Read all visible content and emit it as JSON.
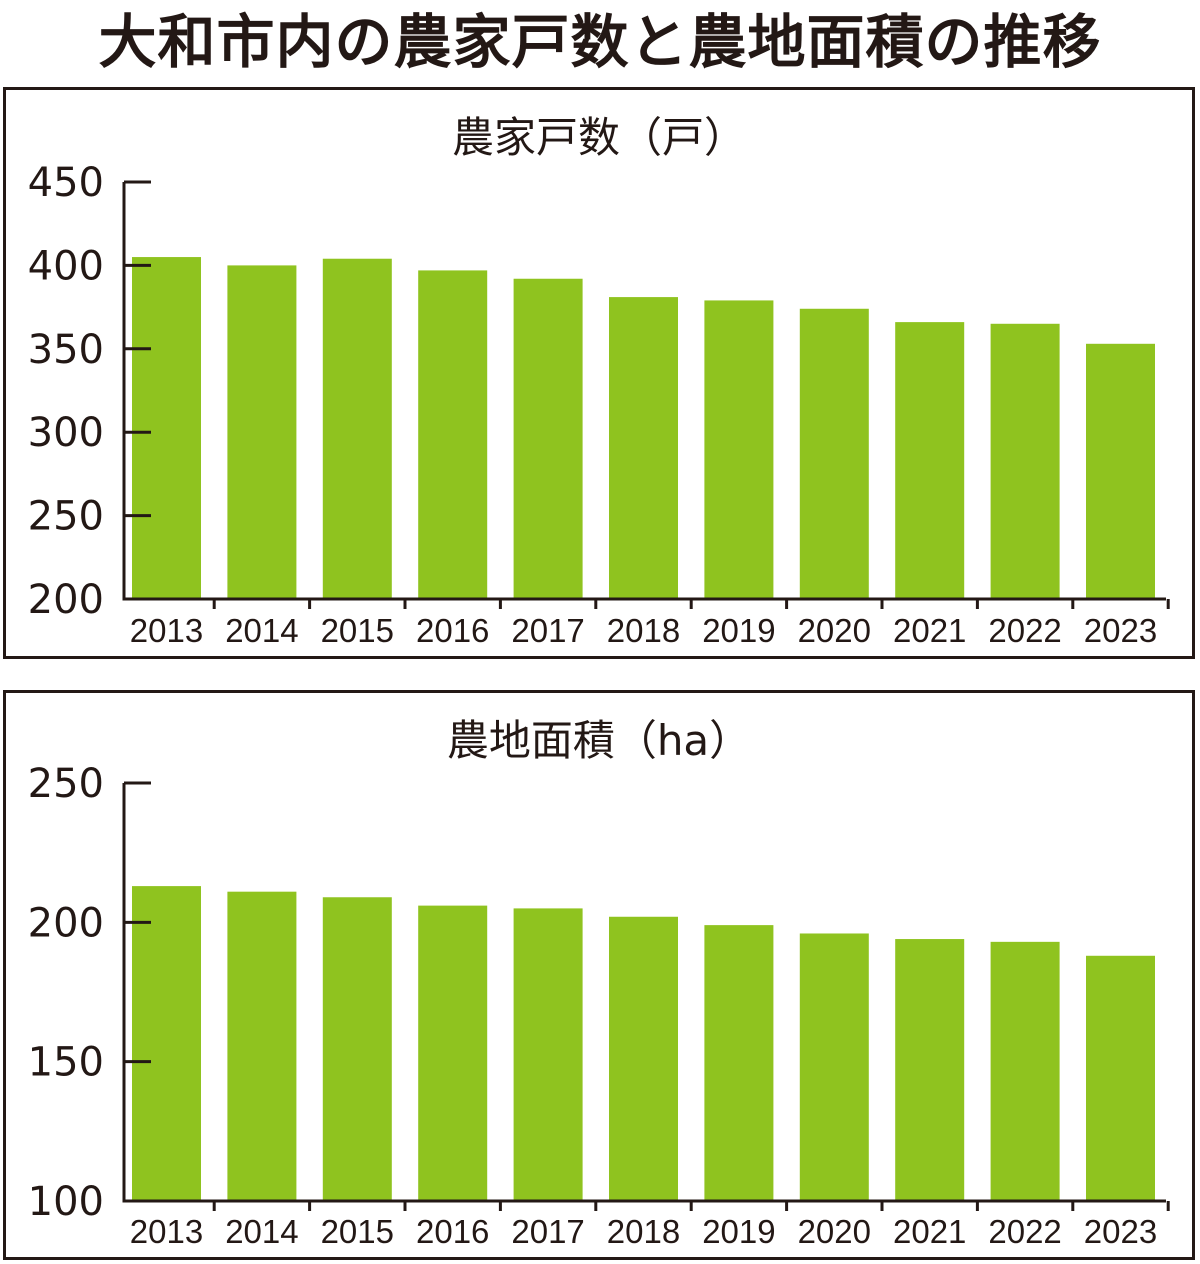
{
  "title": "大和市内の農家戸数と農地面積の推移",
  "colors": {
    "bar": "#8fc31f",
    "axis": "#231815",
    "border": "#231815"
  },
  "chart_data": [
    {
      "type": "bar",
      "title": "農家戸数（戸）",
      "categories": [
        "2013",
        "2014",
        "2015",
        "2016",
        "2017",
        "2018",
        "2019",
        "2020",
        "2021",
        "2022",
        "2023"
      ],
      "values": [
        405,
        400,
        404,
        397,
        392,
        381,
        379,
        374,
        366,
        365,
        353
      ],
      "ylim": [
        200,
        450
      ],
      "yticks": [
        "200",
        "250",
        "300",
        "350",
        "400",
        "450"
      ],
      "grid": false
    },
    {
      "type": "bar",
      "title": "農地面積（ha）",
      "categories": [
        "2013",
        "2014",
        "2015",
        "2016",
        "2017",
        "2018",
        "2019",
        "2020",
        "2021",
        "2022",
        "2023"
      ],
      "values": [
        213,
        211,
        209,
        206,
        205,
        202,
        199,
        196,
        194,
        193,
        188
      ],
      "ylim": [
        100,
        250
      ],
      "yticks": [
        "100",
        "150",
        "200",
        "250"
      ],
      "grid": false
    }
  ]
}
